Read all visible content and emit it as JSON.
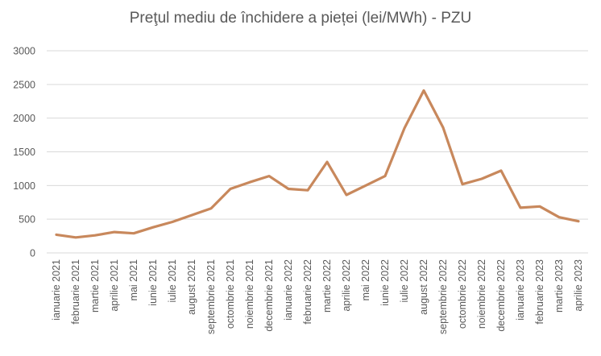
{
  "chart_data": {
    "type": "line",
    "title": "Preţul mediu de închidere a pieței (lei/MWh) - PZU",
    "xlabel": "",
    "ylabel": "",
    "ylim": [
      0,
      3000
    ],
    "yticks": [
      0,
      500,
      1000,
      1500,
      2000,
      2500,
      3000
    ],
    "grid": true,
    "legend": "none",
    "line_color": "#C8885C",
    "categories": [
      "ianuarie 2021",
      "februarie 2021",
      "martie 2021",
      "aprilie 2021",
      "mai 2021",
      "iunie 2021",
      "iulie 2021",
      "august 2021",
      "septembrie 2021",
      "octombrie 2021",
      "noiembrie 2021",
      "decembrie 2021",
      "ianuarie 2022",
      "februarie 2022",
      "martie 2022",
      "aprilie 2022",
      "mai 2022",
      "iunie 2022",
      "iulie 2022",
      "august 2022",
      "septembrie 2022",
      "octombrie 2022",
      "noiembrie 2022",
      "decembrie 2022",
      "ianuarie 2023",
      "februarie 2023",
      "martie 2023",
      "aprilie 2023"
    ],
    "values": [
      270,
      230,
      260,
      310,
      290,
      380,
      460,
      560,
      660,
      950,
      1050,
      1140,
      950,
      930,
      1350,
      860,
      1000,
      1140,
      1850,
      2410,
      1860,
      1020,
      1100,
      1220,
      670,
      690,
      530,
      470
    ]
  }
}
